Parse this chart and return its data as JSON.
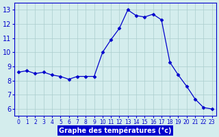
{
  "hours": [
    0,
    1,
    2,
    3,
    4,
    5,
    6,
    7,
    8,
    9,
    10,
    11,
    12,
    13,
    14,
    15,
    16,
    17,
    18,
    19,
    20,
    21,
    22,
    23
  ],
  "temps": [
    8.6,
    8.7,
    8.5,
    8.6,
    8.4,
    8.3,
    8.1,
    8.3,
    8.3,
    8.3,
    10.0,
    10.9,
    11.7,
    13.0,
    12.6,
    12.5,
    12.7,
    12.3,
    9.3,
    8.4,
    7.6,
    6.7,
    6.1,
    6.0
  ],
  "line_color": "#0000cc",
  "marker": "D",
  "marker_size": 2.5,
  "bg_color": "#d4eded",
  "grid_color": "#aacccc",
  "xlabel": "Graphe des températures (°c)",
  "ylim": [
    5.5,
    13.5
  ],
  "yticks": [
    6,
    7,
    8,
    9,
    10,
    11,
    12,
    13
  ],
  "xtick_labels": [
    "0",
    "1",
    "2",
    "3",
    "4",
    "5",
    "6",
    "7",
    "8",
    "9",
    "10",
    "11",
    "12",
    "13",
    "14",
    "15",
    "16",
    "17",
    "18",
    "19",
    "20",
    "21",
    "22",
    "23"
  ]
}
